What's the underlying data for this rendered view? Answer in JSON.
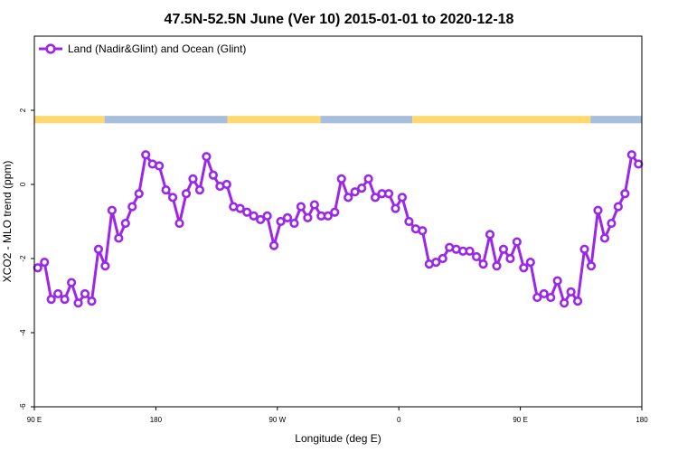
{
  "chart_data": {
    "type": "line",
    "title": "47.5N-52.5N June (Ver 10)   2015-01-01 to 2020-12-18",
    "xlabel": "Longitude (deg E)",
    "ylabel": "XCO2 - MLO trend (ppm)",
    "xlim": [
      90,
      540
    ],
    "ylim": [
      -6,
      4
    ],
    "x_ticks": [
      {
        "value": 90,
        "label": "90 E"
      },
      {
        "value": 180,
        "label": "180"
      },
      {
        "value": 270,
        "label": "90 W"
      },
      {
        "value": 360,
        "label": "0"
      },
      {
        "value": 450,
        "label": "90 E"
      },
      {
        "value": 540,
        "label": "180"
      }
    ],
    "y_ticks": [
      {
        "value": -6,
        "label": "-6"
      },
      {
        "value": -4,
        "label": "-4"
      },
      {
        "value": -2,
        "label": "-2"
      },
      {
        "value": 0,
        "label": "0"
      },
      {
        "value": 2,
        "label": "2"
      }
    ],
    "legend": {
      "position": "top-left"
    },
    "grid": false,
    "colors": {
      "series": "#9B27E8",
      "land_band": "#FFD970",
      "ocean_band": "#A7BEDD"
    },
    "land_ocean_band": {
      "y_range": [
        1.65,
        1.85
      ],
      "segments": [
        {
          "type": "land",
          "x": [
            90,
            142
          ]
        },
        {
          "type": "ocean",
          "x": [
            142,
            233
          ]
        },
        {
          "type": "land",
          "x": [
            233,
            302
          ]
        },
        {
          "type": "ocean",
          "x": [
            302,
            370
          ]
        },
        {
          "type": "land",
          "x": [
            370,
            502
          ]
        },
        {
          "type": "ocean",
          "x": [
            502,
            540
          ]
        }
      ]
    },
    "series": [
      {
        "name": "Land (Nadir&Glint) and Ocean (Glint)",
        "x": [
          92.5,
          97.5,
          102.5,
          107.5,
          112.5,
          117.5,
          122.5,
          127.5,
          132.5,
          137.5,
          142.5,
          147.5,
          152.5,
          157.5,
          162.5,
          167.5,
          172.5,
          177.5,
          182.5,
          187.5,
          192.5,
          197.5,
          202.5,
          207.5,
          212.5,
          217.5,
          222.5,
          227.5,
          232.5,
          237.5,
          242.5,
          247.5,
          252.5,
          257.5,
          262.5,
          267.5,
          272.5,
          277.5,
          282.5,
          287.5,
          292.5,
          297.5,
          302.5,
          307.5,
          312.5,
          317.5,
          322.5,
          327.5,
          332.5,
          337.5,
          342.5,
          347.5,
          352.5,
          357.5,
          362.5,
          367.5,
          372.5,
          377.5,
          382.5,
          387.5,
          392.5,
          397.5,
          402.5,
          407.5,
          412.5,
          417.5,
          422.5,
          427.5,
          432.5,
          437.5,
          442.5,
          447.5,
          452.5,
          457.5,
          462.5,
          467.5,
          472.5,
          477.5,
          482.5,
          487.5,
          492.5,
          497.5,
          502.5,
          507.5,
          512.5,
          517.5,
          522.5,
          527.5,
          532.5,
          537.5
        ],
        "y": [
          -2.25,
          -2.1,
          -3.1,
          -2.95,
          -3.1,
          -2.65,
          -3.2,
          -2.95,
          -3.15,
          -1.75,
          -2.2,
          -0.7,
          -1.45,
          -1.05,
          -0.6,
          -0.25,
          0.8,
          0.55,
          0.5,
          -0.15,
          -0.35,
          -1.05,
          -0.25,
          0.15,
          -0.15,
          0.75,
          0.25,
          -0.05,
          0.0,
          -0.6,
          -0.65,
          -0.75,
          -0.85,
          -0.95,
          -0.85,
          -1.65,
          -1.0,
          -0.9,
          -1.05,
          -0.6,
          -0.9,
          -0.55,
          -0.85,
          -0.85,
          -0.75,
          0.15,
          -0.35,
          -0.2,
          -0.1,
          0.15,
          -0.35,
          -0.25,
          -0.25,
          -0.65,
          -0.35,
          -1.0,
          -1.2,
          -1.25,
          -2.15,
          -2.1,
          -2.0,
          -1.7,
          -1.75,
          -1.8,
          -1.8,
          -1.95,
          -2.15,
          -1.35,
          -2.2,
          -1.75,
          -2.0,
          -1.55,
          -2.25,
          -2.1,
          -3.05,
          -2.95,
          -3.05,
          -2.6,
          -3.2,
          -2.9,
          -3.15,
          -1.75,
          -2.2,
          -0.7,
          -1.45,
          -1.05,
          -0.6,
          -0.25,
          0.8,
          0.55
        ]
      }
    ]
  }
}
